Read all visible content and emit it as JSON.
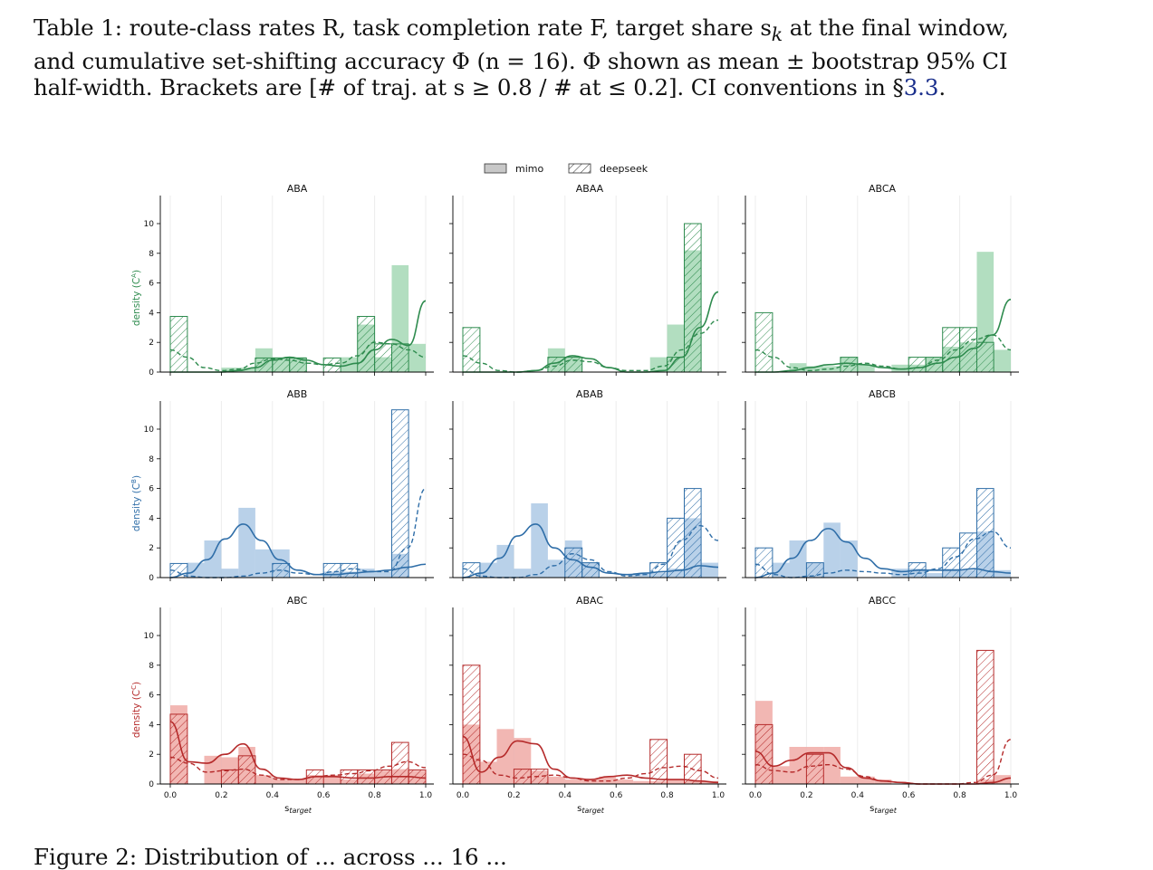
{
  "table_caption": {
    "line1": "Table 1: route-class rates R, task completion rate F, target share s",
    "line1_sub": "k",
    "line1_end": " at the final window,",
    "line2": "and cumulative set-shifting accuracy Φ (n = 16). Φ shown as mean ± bootstrap 95% CI",
    "line3_a": "half-width. Brackets are [# of traj. at s ≥ 0.8 / # at ≤ 0.2]. CI conventions in §",
    "line3_ref": "3.3",
    "line3_end": "."
  },
  "figure_caption_fragment": "Figure 2: Distribution of ... across ... 16 ...",
  "chart_data": {
    "type": "histogram-grid",
    "legend": {
      "entries": [
        "mimo",
        "deepseek"
      ],
      "placement": "top-center"
    },
    "xlabel": "s_target",
    "xlim": [
      0,
      1
    ],
    "ylim": [
      0,
      12
    ],
    "xticks": [
      "0.0",
      "0.2",
      "0.4",
      "0.6",
      "0.8",
      "1.0"
    ],
    "yticks": [
      "0",
      "2",
      "4",
      "6",
      "8",
      "10"
    ],
    "grid": "vertical",
    "bin_edges": [
      0.0,
      0.067,
      0.133,
      0.2,
      0.267,
      0.333,
      0.4,
      0.467,
      0.533,
      0.6,
      0.667,
      0.733,
      0.8,
      0.867,
      0.933,
      1.0
    ],
    "rows": [
      {
        "ylabel": "density (C^A)",
        "color": "#2e8b4e",
        "fill": "#9fd6b0"
      },
      {
        "ylabel": "density (C^B)",
        "color": "#2f6ea8",
        "fill": "#a7c6e3"
      },
      {
        "ylabel": "density (C^C)",
        "color": "#b52a2a",
        "fill": "#efa5a0"
      }
    ],
    "panels": [
      {
        "title": "ABA",
        "row": 0,
        "mimo": [
          0,
          0,
          0,
          0.3,
          0.3,
          1.6,
          1.0,
          1.0,
          0,
          0,
          1.0,
          3.2,
          1.0,
          7.2,
          1.9
        ],
        "deepseek": [
          3.75,
          0,
          0,
          0,
          0,
          0.95,
          0.95,
          0.95,
          0,
          0.95,
          0,
          3.75,
          1.9,
          1.9,
          0
        ],
        "mimo_kde": [
          0,
          0,
          0,
          0,
          0.1,
          0.3,
          0.8,
          1.0,
          0.8,
          0.5,
          0.4,
          0.6,
          1.5,
          2.2,
          1.8,
          4.8
        ],
        "deepseek_kde": [
          1.5,
          1.0,
          0.3,
          0.1,
          0.2,
          0.6,
          0.9,
          0.8,
          0.6,
          0.5,
          0.6,
          1.1,
          2.0,
          1.9,
          1.5,
          1.0
        ]
      },
      {
        "title": "ABAA",
        "row": 0,
        "mimo": [
          0,
          0,
          0,
          0,
          0,
          1.6,
          1.0,
          0,
          0,
          0,
          0,
          1.0,
          3.2,
          8.2,
          0
        ],
        "deepseek": [
          3.0,
          0,
          0,
          0,
          0,
          1.0,
          1.0,
          0,
          0,
          0,
          0,
          0,
          1.0,
          10.0,
          0
        ],
        "mimo_kde": [
          0,
          0,
          0,
          0,
          0.1,
          0.6,
          1.1,
          0.9,
          0.3,
          0,
          0,
          0.1,
          1.0,
          3.0,
          5.4
        ],
        "deepseek_kde": [
          1.1,
          0.6,
          0.1,
          0,
          0.1,
          0.4,
          0.8,
          0.7,
          0.3,
          0.1,
          0.1,
          0.4,
          1.5,
          2.6,
          3.5
        ]
      },
      {
        "title": "ABCA",
        "row": 0,
        "mimo": [
          0,
          0,
          0.6,
          0.4,
          0.4,
          1.0,
          0.5,
          0,
          0.5,
          0.5,
          1.0,
          1.7,
          2.0,
          8.1,
          1.5
        ],
        "deepseek": [
          4.0,
          0,
          0,
          0,
          0,
          1.0,
          0,
          0,
          0,
          1.0,
          1.0,
          3.0,
          3.0,
          2.0,
          0
        ],
        "mimo_kde": [
          0,
          0,
          0.1,
          0.3,
          0.5,
          0.6,
          0.5,
          0.3,
          0.2,
          0.3,
          0.6,
          1.0,
          1.6,
          2.5,
          4.9
        ],
        "deepseek_kde": [
          1.5,
          1.0,
          0.3,
          0.1,
          0.2,
          0.4,
          0.6,
          0.4,
          0.2,
          0.3,
          0.8,
          1.5,
          2.2,
          2.5,
          1.5
        ]
      },
      {
        "title": "ABB",
        "row": 1,
        "mimo": [
          0,
          1.0,
          2.5,
          0.6,
          4.7,
          1.9,
          1.9,
          0,
          0,
          0.4,
          0.4,
          0.6,
          0.4,
          1.6,
          0
        ],
        "deepseek": [
          0.95,
          0,
          0,
          0,
          0,
          0,
          0.95,
          0,
          0,
          0.95,
          0.95,
          0,
          0,
          11.3,
          0
        ],
        "mimo_kde": [
          0,
          0.3,
          1.2,
          2.6,
          3.6,
          2.5,
          1.2,
          0.5,
          0.2,
          0.2,
          0.3,
          0.4,
          0.5,
          0.7,
          0.9
        ],
        "deepseek_kde": [
          0.5,
          0.1,
          0,
          0,
          0.1,
          0.3,
          0.5,
          0.3,
          0.2,
          0.4,
          0.6,
          0.4,
          0.4,
          2.0,
          6.0
        ]
      },
      {
        "title": "ABAB",
        "row": 1,
        "mimo": [
          0,
          1.0,
          2.2,
          0.6,
          5.0,
          1.2,
          2.5,
          1.0,
          0,
          0,
          0.3,
          0.3,
          0.6,
          4.0,
          1.0
        ],
        "deepseek": [
          1.0,
          0,
          0,
          0,
          0,
          0,
          2.0,
          1.0,
          0,
          0,
          0,
          1.0,
          4.0,
          6.0,
          0
        ],
        "mimo_kde": [
          0,
          0.3,
          1.3,
          2.8,
          3.6,
          2.0,
          1.2,
          0.7,
          0.3,
          0.2,
          0.3,
          0.4,
          0.5,
          0.8,
          0.7
        ],
        "deepseek_kde": [
          0.6,
          0.1,
          0,
          0,
          0.2,
          0.8,
          1.6,
          1.2,
          0.4,
          0.1,
          0.2,
          0.9,
          2.5,
          3.5,
          2.5
        ]
      },
      {
        "title": "ABCB",
        "row": 1,
        "mimo": [
          0,
          1.0,
          2.5,
          1.0,
          3.7,
          2.5,
          0,
          0,
          0.6,
          0.6,
          0.3,
          0.6,
          0.5,
          3.1,
          0.5
        ],
        "deepseek": [
          2.0,
          0,
          0,
          1.0,
          0,
          0,
          0,
          0,
          0,
          1.0,
          0,
          2.0,
          3.0,
          6.0,
          0
        ],
        "mimo_kde": [
          0,
          0.3,
          1.3,
          2.5,
          3.3,
          2.4,
          1.3,
          0.6,
          0.4,
          0.5,
          0.5,
          0.5,
          0.6,
          0.4,
          0.3
        ],
        "deepseek_kde": [
          0.9,
          0.2,
          0,
          0.1,
          0.3,
          0.5,
          0.4,
          0.3,
          0.2,
          0.3,
          0.6,
          1.4,
          2.6,
          3.1,
          2.0
        ]
      },
      {
        "title": "ABC",
        "row": 2,
        "mimo": [
          5.3,
          0,
          1.9,
          1.8,
          2.5,
          0.6,
          0.3,
          0.3,
          0.6,
          0.6,
          0.3,
          0.7,
          0.9,
          1.0,
          0.9
        ],
        "deepseek": [
          4.7,
          0,
          0,
          0.95,
          1.9,
          0,
          0,
          0,
          0.95,
          0,
          0.95,
          0.95,
          0.95,
          2.8,
          0.95
        ],
        "mimo_kde": [
          4.2,
          1.5,
          1.4,
          2.0,
          2.7,
          1.0,
          0.4,
          0.3,
          0.5,
          0.5,
          0.4,
          0.4,
          0.5,
          0.5,
          0.4
        ],
        "deepseek_kde": [
          1.8,
          1.4,
          0.8,
          0.9,
          1.0,
          0.6,
          0.3,
          0.3,
          0.5,
          0.6,
          0.7,
          0.9,
          1.2,
          1.5,
          1.1
        ]
      },
      {
        "title": "ABAC",
        "row": 2,
        "mimo": [
          4.0,
          1.5,
          3.7,
          3.1,
          0.9,
          0.5,
          0.3,
          0.3,
          0.5,
          0.3,
          0.2,
          0.2,
          0.3,
          0.2,
          0.2
        ],
        "deepseek": [
          8.0,
          0,
          0,
          1.0,
          1.0,
          0,
          0,
          0,
          0,
          0,
          0,
          3.0,
          0,
          2.0,
          0
        ],
        "mimo_kde": [
          3.2,
          0.8,
          1.8,
          2.9,
          2.7,
          1.0,
          0.4,
          0.3,
          0.5,
          0.6,
          0.4,
          0.3,
          0.3,
          0.2,
          0.1
        ],
        "deepseek_kde": [
          2.0,
          1.6,
          0.6,
          0.4,
          0.5,
          0.6,
          0.4,
          0.2,
          0.2,
          0.4,
          0.7,
          1.1,
          1.2,
          0.9,
          0.4
        ]
      },
      {
        "title": "ABCC",
        "row": 2,
        "mimo": [
          5.6,
          1.2,
          2.5,
          2.5,
          2.5,
          0.5,
          0.5,
          0.3,
          0,
          0,
          0,
          0,
          0,
          0.3,
          0.6
        ],
        "deepseek": [
          4.0,
          0,
          0,
          2.0,
          0,
          0,
          0,
          0,
          0,
          0,
          0,
          0,
          0,
          9.0,
          0
        ],
        "mimo_kde": [
          2.2,
          1.2,
          1.6,
          2.1,
          2.1,
          1.1,
          0.4,
          0.2,
          0.1,
          0,
          0,
          0,
          0,
          0.1,
          0.4
        ],
        "deepseek_kde": [
          1.3,
          0.9,
          0.8,
          1.2,
          1.3,
          1.0,
          0.5,
          0.2,
          0.1,
          0,
          0,
          0,
          0.1,
          0.6,
          3.0
        ]
      }
    ]
  }
}
